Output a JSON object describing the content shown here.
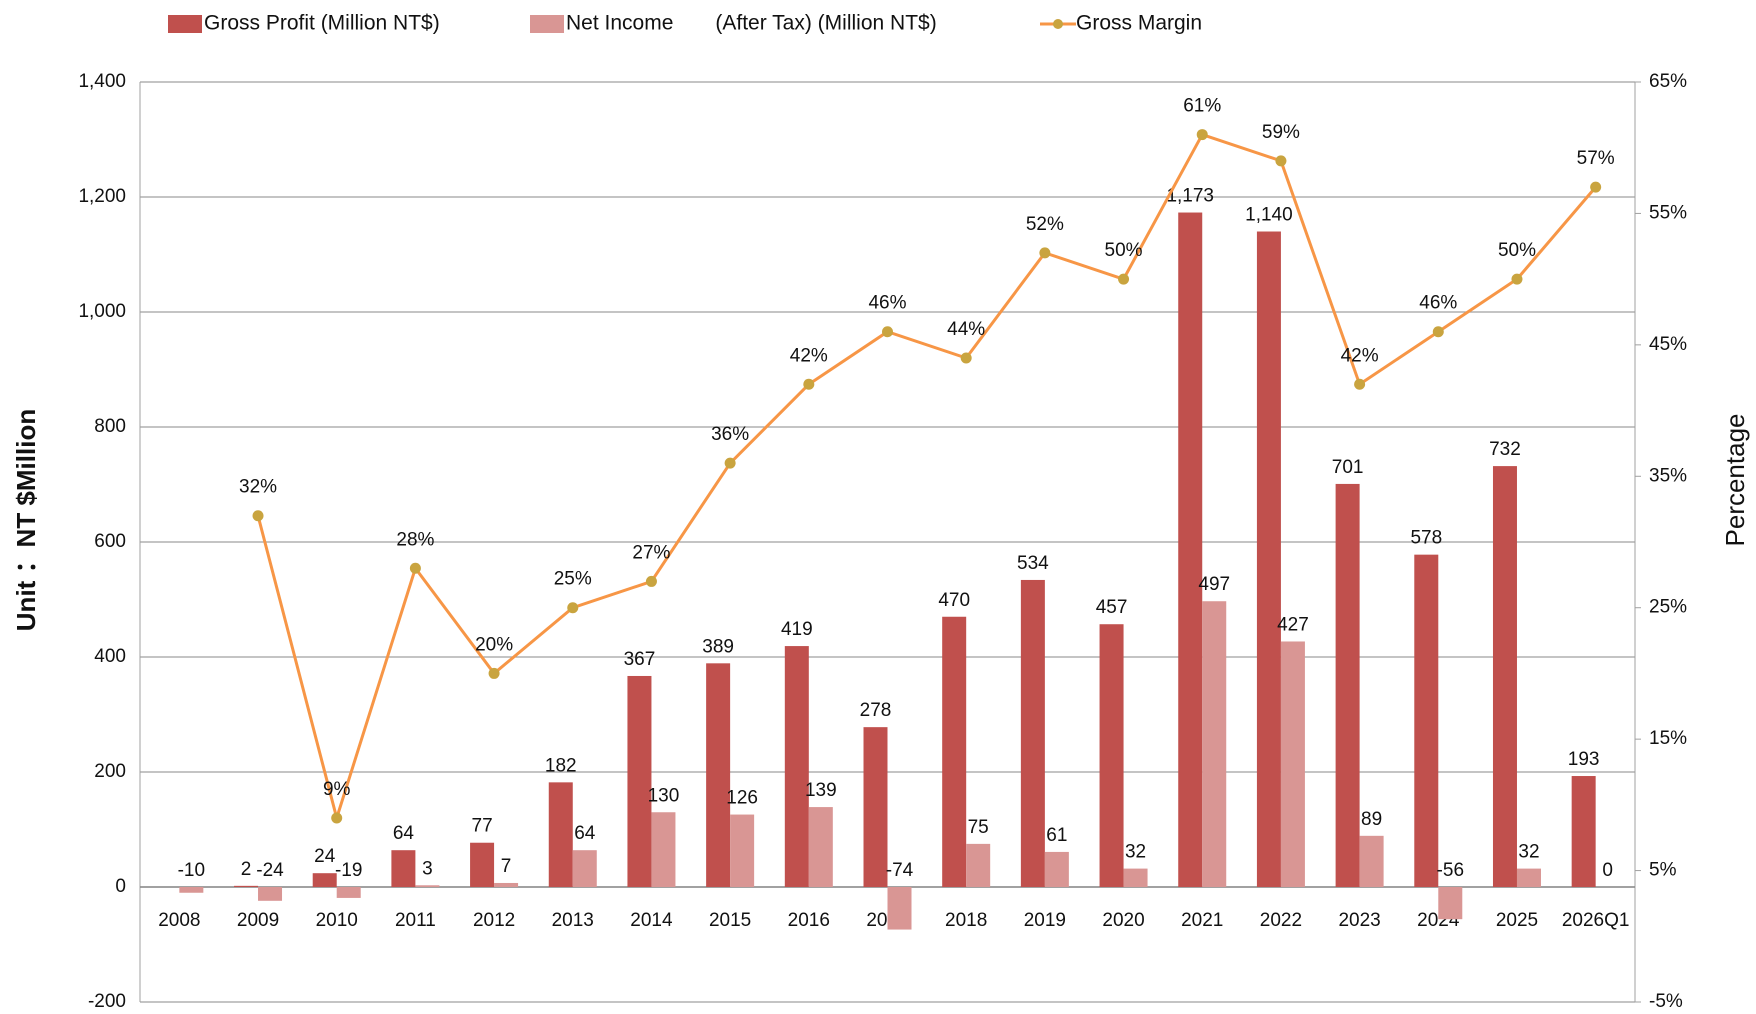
{
  "chart_data": {
    "type": "bar_line",
    "y_label": "Unit ：NT $Million",
    "y2_label": "Percentage",
    "categories": [
      "2008",
      "2009",
      "2010",
      "2011",
      "2012",
      "2013",
      "2014",
      "2015",
      "2016",
      "2017",
      "2018",
      "2019",
      "2020",
      "2021",
      "2022",
      "2023",
      "2024",
      "2025",
      "2026Q1"
    ],
    "series": [
      {
        "name": "Gross Profit (Million NT$)",
        "color": "#c0504d",
        "type": "bar",
        "values": [
          null,
          2,
          24,
          64,
          77,
          182,
          367,
          389,
          419,
          278,
          470,
          534,
          457,
          1173,
          1140,
          701,
          578,
          732,
          193
        ],
        "value_labels": [
          null,
          "2",
          "24",
          "64",
          "77",
          "182",
          "367",
          "389",
          "419",
          "278",
          "470",
          "534",
          "457",
          "1,173",
          "1,140",
          "701",
          "578",
          "732",
          "193"
        ]
      },
      {
        "name": "Net Income　　(After Tax) (Million NT$)",
        "color": "#d99694",
        "type": "bar",
        "values": [
          -10,
          -24,
          -19,
          3,
          7,
          64,
          130,
          126,
          139,
          -74,
          75,
          61,
          32,
          497,
          427,
          89,
          -56,
          32,
          0
        ]
      },
      {
        "name": "Gross Margin",
        "color": "#f79646",
        "marker_color": "#c9a43f",
        "type": "line",
        "axis": "y2",
        "values": [
          null,
          32,
          9,
          28,
          20,
          25,
          27,
          36,
          42,
          46,
          44,
          52,
          50,
          61,
          59,
          42,
          46,
          50,
          57
        ],
        "value_labels": [
          null,
          "32%",
          "9%",
          "28%",
          "20%",
          "25%",
          "27%",
          "36%",
          "42%",
          "46%",
          "44%",
          "52%",
          "50%",
          "61%",
          "59%",
          "42%",
          "46%",
          "50%",
          "57%"
        ]
      }
    ],
    "ylim": [
      -200,
      1400
    ],
    "yticks": [
      -200,
      0,
      200,
      400,
      600,
      800,
      {
        "value": 1000,
        "label": "1,000"
      },
      {
        "value": 1200,
        "label": "1,200"
      },
      {
        "value": 1400,
        "label": "1,400"
      }
    ],
    "y2lim": [
      -5,
      65
    ],
    "y2ticks": [
      {
        "value": -5,
        "label": "-5%"
      },
      {
        "value": 5,
        "label": "5%"
      },
      {
        "value": 15,
        "label": "15%"
      },
      {
        "value": 25,
        "label": "25%"
      },
      {
        "value": 35,
        "label": "35%"
      },
      {
        "value": 45,
        "label": "45%"
      },
      {
        "value": 55,
        "label": "55%"
      },
      {
        "value": 65,
        "label": "65%"
      }
    ],
    "grid": true,
    "legend": "top"
  }
}
